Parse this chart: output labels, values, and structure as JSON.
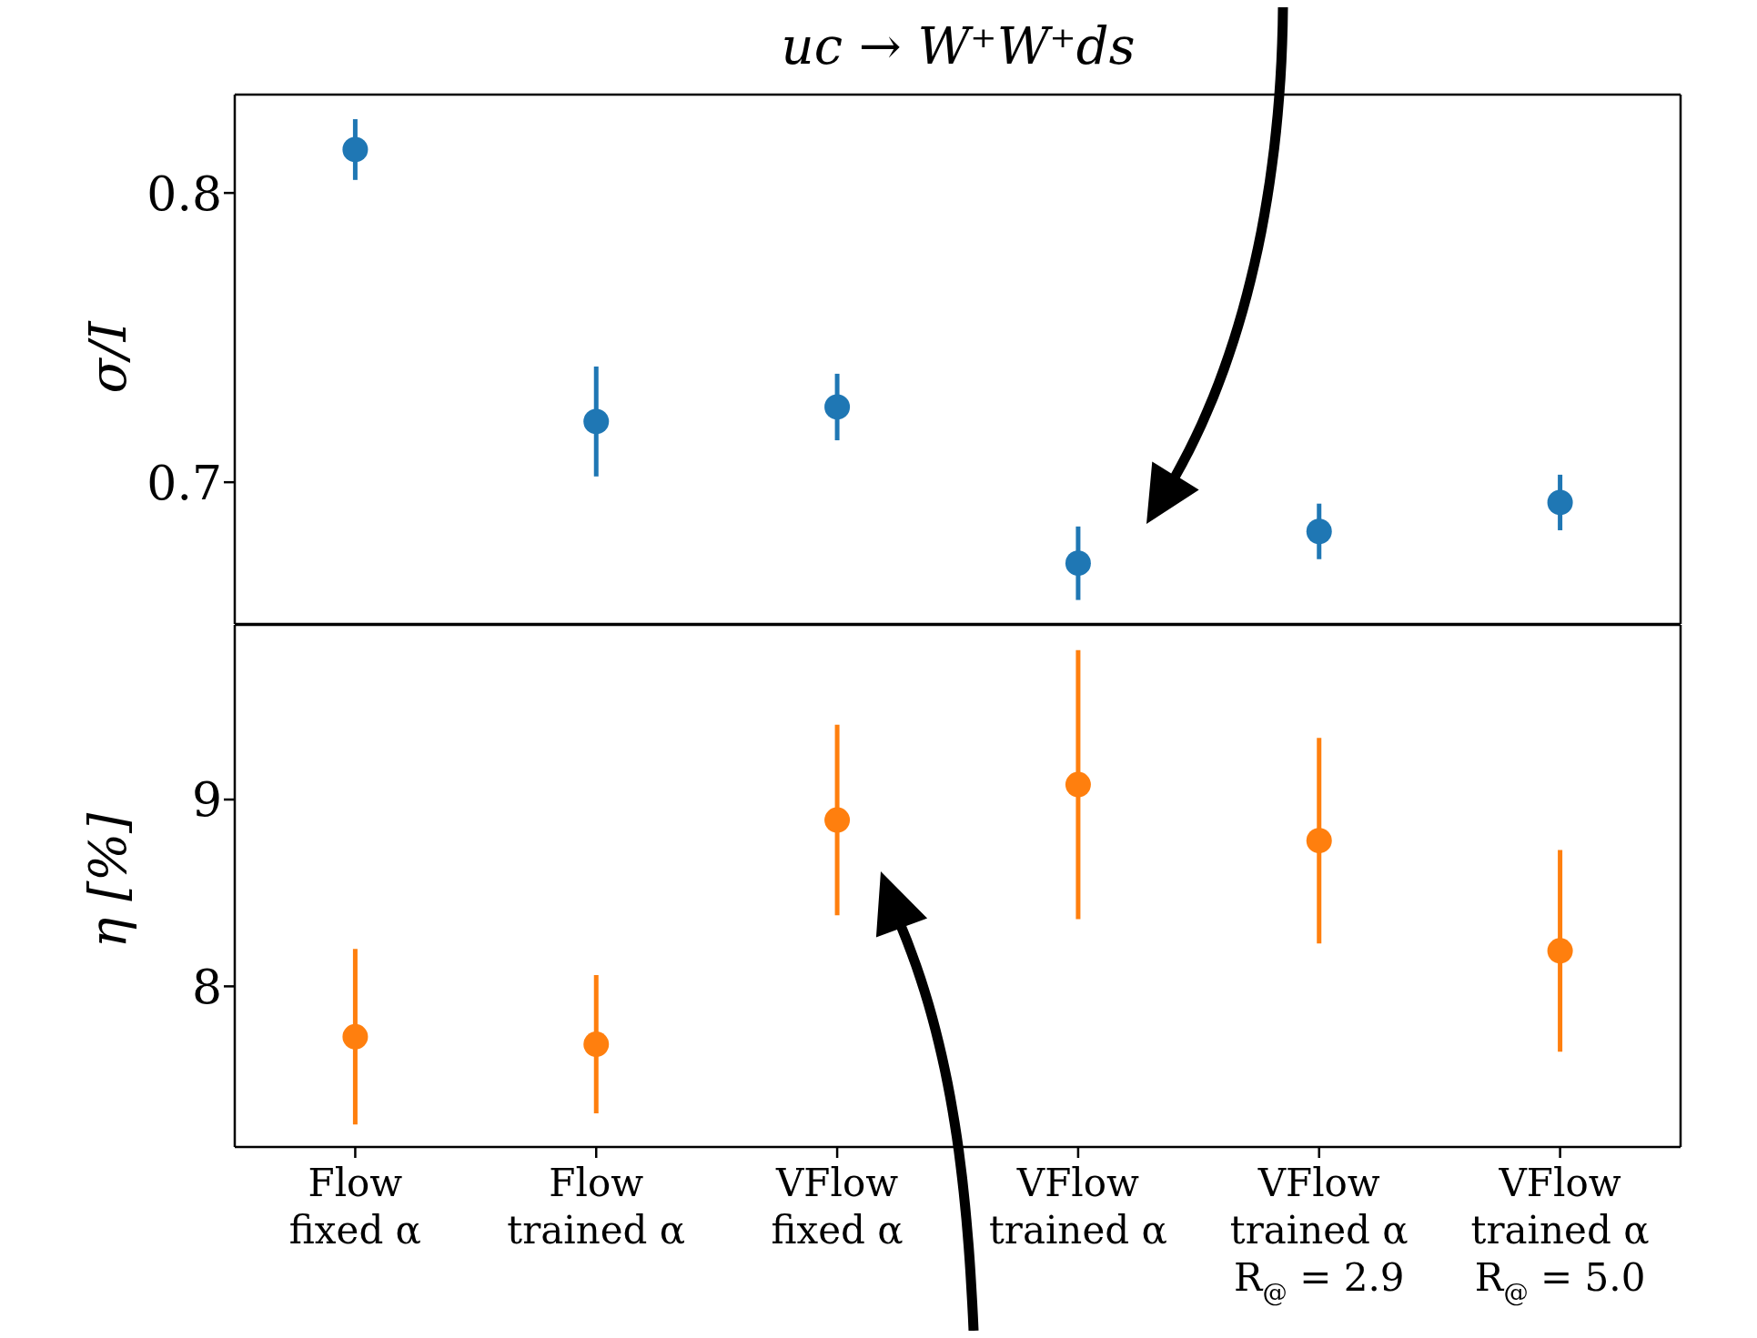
{
  "chart_data": [
    {
      "type": "scatter",
      "title": "uc → W⁺W⁺ds",
      "ylabel": "σ/I",
      "values": [
        0.815,
        0.721,
        0.726,
        0.672,
        0.683,
        0.693
      ],
      "errors": [
        0.0105,
        0.019,
        0.0115,
        0.0127,
        0.0096,
        0.0096
      ],
      "color": "#1f77b4",
      "ylim": [
        0.651,
        0.834
      ],
      "yticks": [
        0.7,
        0.8
      ],
      "tick_labels": "y",
      "marker": "circle",
      "grid": false
    },
    {
      "type": "scatter",
      "ylabel": "η [%]",
      "categories": [
        "Flow\nfixed α",
        "Flow\ntrained α",
        "VFlow\nfixed α",
        "VFlow\ntrained α",
        "VFlow\ntrained α\nR$_{@}$ = 2.9",
        "VFlow\ntrained α\nR$_{@}$ = 5.0"
      ],
      "values": [
        7.73,
        7.69,
        8.89,
        9.08,
        8.78,
        8.19
      ],
      "errors": [
        0.47,
        0.37,
        0.51,
        0.72,
        0.55,
        0.54
      ],
      "color": "#ff7f0e",
      "ylim": [
        7.14,
        9.935
      ],
      "yticks": [
        8,
        9
      ],
      "marker": "circle",
      "grid": false
    }
  ]
}
